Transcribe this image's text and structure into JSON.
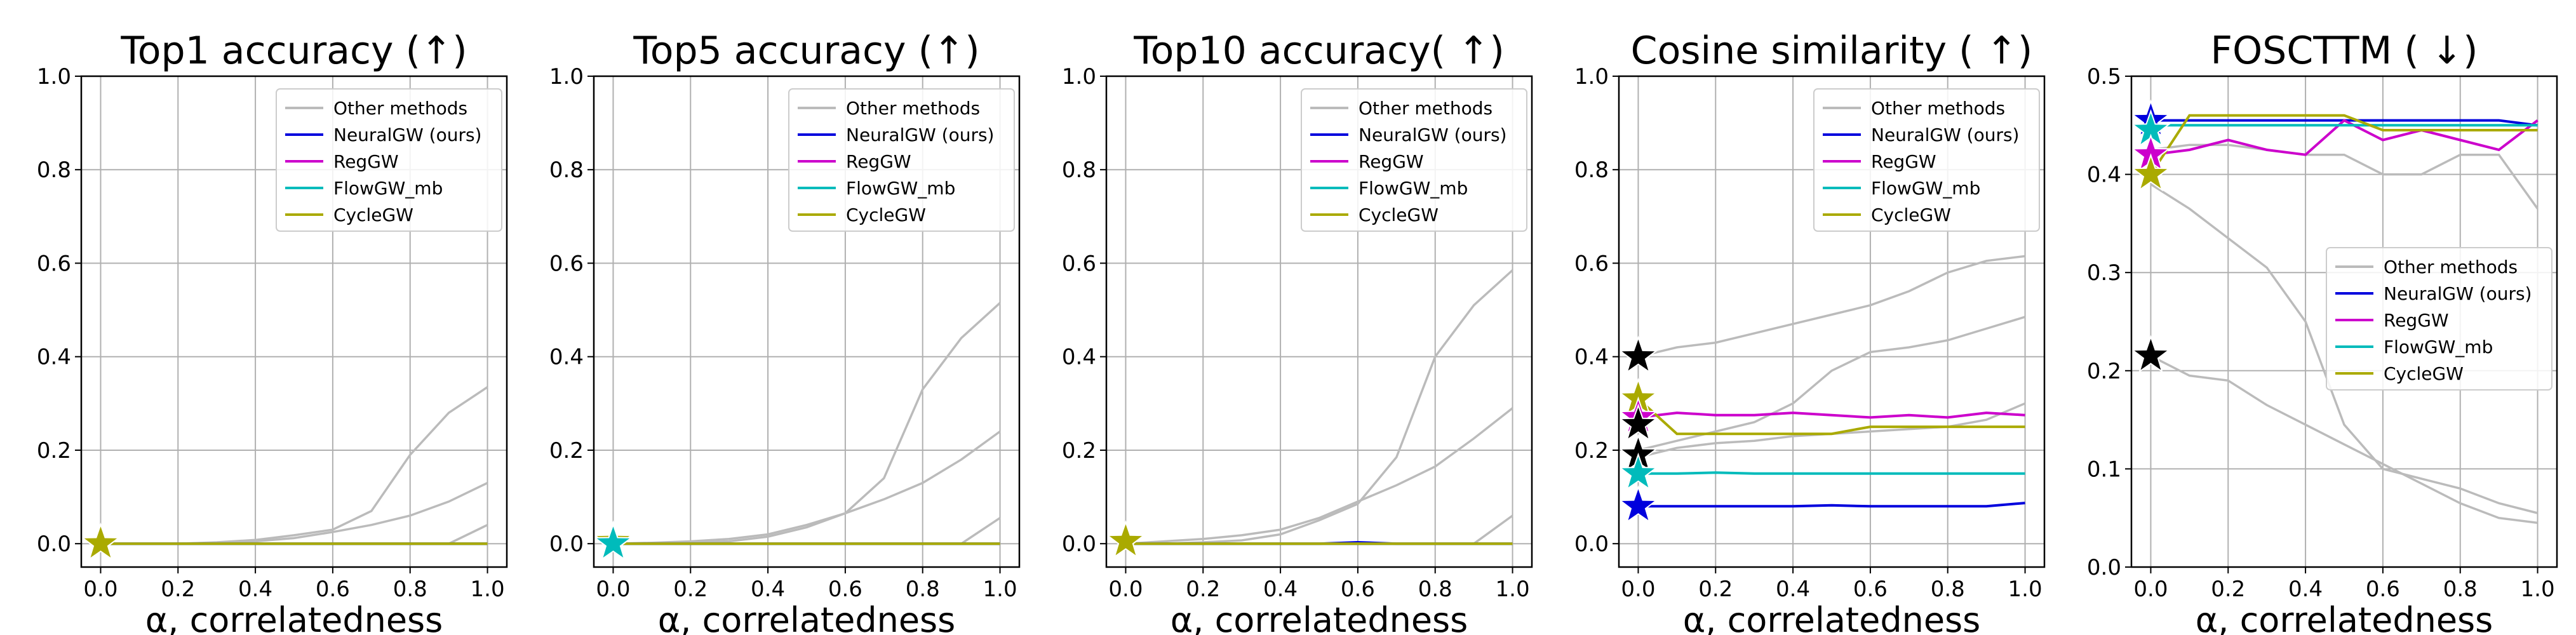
{
  "legend_labels": [
    "Other methods",
    "NeuralGW (ours)",
    "RegGW",
    "FlowGW_mb",
    "CycleGW"
  ],
  "colors": {
    "other": "#bbbbbb",
    "NeuralGW (ours)": "#0000dd",
    "RegGW": "#cc00cc",
    "FlowGW_mb": "#00bbbb",
    "CycleGW": "#aaaa00",
    "star_other": "#000000"
  },
  "chart_data": [
    {
      "type": "line",
      "title": "Top1 accuracy (↑)",
      "xlabel": "α, correlatedness",
      "ylabel": "",
      "xlim": [
        -0.05,
        1.05
      ],
      "ylim": [
        -0.05,
        1.0
      ],
      "xticks": [
        "0.0",
        "0.2",
        "0.4",
        "0.6",
        "0.8",
        "1.0"
      ],
      "yticks": [
        "0.0",
        "0.2",
        "0.4",
        "0.6",
        "0.8",
        "1.0"
      ],
      "grid": true,
      "legend_position": "top-right",
      "x": [
        0.0,
        0.1,
        0.2,
        0.3,
        0.4,
        0.5,
        0.6,
        0.7,
        0.8,
        0.9,
        1.0
      ],
      "other_series": [
        [
          0.0,
          0.0,
          0.0,
          0.002,
          0.005,
          0.012,
          0.025,
          0.04,
          0.06,
          0.09,
          0.13
        ],
        [
          0.0,
          0.0,
          0.0,
          0.003,
          0.008,
          0.018,
          0.03,
          0.07,
          0.19,
          0.28,
          0.335
        ],
        [
          0.0,
          0.0,
          0.0,
          0.0,
          0.0,
          0.0,
          0.0,
          0.0,
          0.0,
          0.0,
          0.04
        ]
      ],
      "series": [
        {
          "name": "NeuralGW (ours)",
          "values": [
            0.0,
            0.0,
            0.0,
            0.0,
            0.0,
            0.0,
            0.0,
            0.0,
            0.0,
            0.0,
            0.0
          ]
        },
        {
          "name": "RegGW",
          "values": [
            0.0,
            0.0,
            0.0,
            0.0,
            0.0,
            0.0,
            0.0,
            0.0,
            0.0,
            0.0,
            0.0
          ]
        },
        {
          "name": "FlowGW_mb",
          "values": [
            0.0,
            0.0,
            0.0,
            0.0,
            0.0,
            0.0,
            0.0,
            0.0,
            0.0,
            0.0,
            0.0
          ]
        },
        {
          "name": "CycleGW",
          "values": [
            0.0,
            0.0,
            0.0,
            0.0,
            0.0,
            0.0,
            0.0,
            0.0,
            0.0,
            0.0,
            0.0
          ]
        }
      ],
      "stars": [
        {
          "series": "other",
          "value": 0.0
        },
        {
          "series": "CycleGW",
          "value": 0.0
        }
      ]
    },
    {
      "type": "line",
      "title": "Top5 accuracy (↑)",
      "xlabel": "α, correlatedness",
      "ylabel": "",
      "xlim": [
        -0.05,
        1.05
      ],
      "ylim": [
        -0.05,
        1.0
      ],
      "xticks": [
        "0.0",
        "0.2",
        "0.4",
        "0.6",
        "0.8",
        "1.0"
      ],
      "yticks": [
        "0.0",
        "0.2",
        "0.4",
        "0.6",
        "0.8",
        "1.0"
      ],
      "grid": true,
      "legend_position": "top-right",
      "x": [
        0.0,
        0.1,
        0.2,
        0.3,
        0.4,
        0.5,
        0.6,
        0.7,
        0.8,
        0.9,
        1.0
      ],
      "other_series": [
        [
          0.0,
          0.002,
          0.005,
          0.01,
          0.02,
          0.04,
          0.065,
          0.095,
          0.13,
          0.18,
          0.24
        ],
        [
          0.0,
          0.0,
          0.002,
          0.005,
          0.015,
          0.035,
          0.065,
          0.14,
          0.33,
          0.44,
          0.515
        ],
        [
          0.0,
          0.0,
          0.0,
          0.0,
          0.0,
          0.0,
          0.0,
          0.0,
          0.0,
          0.0,
          0.055
        ]
      ],
      "series": [
        {
          "name": "NeuralGW (ours)",
          "values": [
            0.0,
            0.0,
            0.0,
            0.0,
            0.0,
            0.0,
            0.0,
            0.0,
            0.0,
            0.0,
            0.0
          ]
        },
        {
          "name": "RegGW",
          "values": [
            0.0,
            0.0,
            0.0,
            0.0,
            0.0,
            0.0,
            0.0,
            0.0,
            0.0,
            0.0,
            0.0
          ]
        },
        {
          "name": "FlowGW_mb",
          "values": [
            0.0,
            0.0,
            0.0,
            0.0,
            0.0,
            0.0,
            0.0,
            0.0,
            0.0,
            0.0,
            0.0
          ]
        },
        {
          "name": "CycleGW",
          "values": [
            0.0,
            0.0,
            0.0,
            0.0,
            0.0,
            0.0,
            0.0,
            0.0,
            0.0,
            0.0,
            0.0
          ]
        }
      ],
      "stars": [
        {
          "series": "other",
          "value": 0.0
        },
        {
          "series": "CycleGW",
          "value": 0.005
        },
        {
          "series": "FlowGW_mb",
          "value": 0.0
        }
      ]
    },
    {
      "type": "line",
      "title": "Top10 accuracy( ↑)",
      "xlabel": "α, correlatedness",
      "ylabel": "",
      "xlim": [
        -0.05,
        1.05
      ],
      "ylim": [
        -0.05,
        1.0
      ],
      "xticks": [
        "0.0",
        "0.2",
        "0.4",
        "0.6",
        "0.8",
        "1.0"
      ],
      "yticks": [
        "0.0",
        "0.2",
        "0.4",
        "0.6",
        "0.8",
        "1.0"
      ],
      "grid": true,
      "legend_position": "top-right",
      "x": [
        0.0,
        0.1,
        0.2,
        0.3,
        0.4,
        0.5,
        0.6,
        0.7,
        0.8,
        0.9,
        1.0
      ],
      "other_series": [
        [
          0.0,
          0.005,
          0.01,
          0.018,
          0.03,
          0.055,
          0.09,
          0.125,
          0.165,
          0.225,
          0.29
        ],
        [
          0.0,
          0.0,
          0.003,
          0.007,
          0.02,
          0.05,
          0.085,
          0.185,
          0.4,
          0.51,
          0.585
        ],
        [
          0.0,
          0.0,
          0.0,
          0.0,
          0.0,
          0.0,
          0.0,
          0.0,
          0.0,
          0.0,
          0.06
        ]
      ],
      "series": [
        {
          "name": "NeuralGW (ours)",
          "values": [
            0.0,
            0.0,
            0.0,
            0.0,
            0.0,
            0.0,
            0.003,
            0.0,
            0.0,
            0.0,
            0.0
          ]
        },
        {
          "name": "RegGW",
          "values": [
            0.0,
            0.0,
            0.0,
            0.0,
            0.0,
            0.0,
            0.0,
            0.0,
            0.0,
            0.0,
            0.0
          ]
        },
        {
          "name": "FlowGW_mb",
          "values": [
            0.0,
            0.0,
            0.0,
            0.0,
            0.0,
            0.0,
            0.0,
            0.0,
            0.0,
            0.0,
            0.0
          ]
        },
        {
          "name": "CycleGW",
          "values": [
            0.0,
            0.0,
            0.0,
            0.0,
            0.0,
            0.0,
            0.0,
            0.0,
            0.0,
            0.0,
            0.0
          ]
        }
      ],
      "stars": [
        {
          "series": "other",
          "value": 0.005
        },
        {
          "series": "CycleGW",
          "value": 0.005
        }
      ]
    },
    {
      "type": "line",
      "title": "Cosine similarity ( ↑)",
      "xlabel": "α, correlatedness",
      "ylabel": "",
      "xlim": [
        -0.05,
        1.05
      ],
      "ylim": [
        -0.05,
        1.0
      ],
      "xticks": [
        "0.0",
        "0.2",
        "0.4",
        "0.6",
        "0.8",
        "1.0"
      ],
      "yticks": [
        "0.0",
        "0.2",
        "0.4",
        "0.6",
        "0.8",
        "1.0"
      ],
      "grid": true,
      "legend_position": "top-right",
      "x": [
        0.0,
        0.1,
        0.2,
        0.3,
        0.4,
        0.5,
        0.6,
        0.7,
        0.8,
        0.9,
        1.0
      ],
      "other_series": [
        [
          0.4,
          0.42,
          0.43,
          0.45,
          0.47,
          0.49,
          0.51,
          0.54,
          0.58,
          0.605,
          0.615
        ],
        [
          0.2,
          0.22,
          0.24,
          0.26,
          0.3,
          0.37,
          0.41,
          0.42,
          0.435,
          0.46,
          0.485
        ],
        [
          0.185,
          0.205,
          0.215,
          0.22,
          0.23,
          0.235,
          0.24,
          0.245,
          0.25,
          0.265,
          0.3
        ]
      ],
      "series": [
        {
          "name": "NeuralGW (ours)",
          "values": [
            0.08,
            0.08,
            0.08,
            0.08,
            0.08,
            0.082,
            0.08,
            0.08,
            0.08,
            0.08,
            0.087
          ]
        },
        {
          "name": "RegGW",
          "values": [
            0.27,
            0.28,
            0.275,
            0.275,
            0.28,
            0.275,
            0.27,
            0.275,
            0.27,
            0.28,
            0.275
          ]
        },
        {
          "name": "FlowGW_mb",
          "values": [
            0.15,
            0.15,
            0.152,
            0.15,
            0.15,
            0.15,
            0.15,
            0.15,
            0.15,
            0.15,
            0.15
          ]
        },
        {
          "name": "CycleGW",
          "values": [
            0.31,
            0.235,
            0.235,
            0.235,
            0.235,
            0.235,
            0.25,
            0.25,
            0.25,
            0.25,
            0.25
          ]
        }
      ],
      "stars": [
        {
          "series": "other",
          "value": 0.4
        },
        {
          "series": "CycleGW",
          "value": 0.31
        },
        {
          "series": "RegGW",
          "value": 0.27
        },
        {
          "series": "other",
          "value": 0.255
        },
        {
          "series": "other",
          "value": 0.19
        },
        {
          "series": "FlowGW_mb",
          "value": 0.15
        },
        {
          "series": "NeuralGW (ours)",
          "value": 0.08
        }
      ]
    },
    {
      "type": "line",
      "title": "FOSCTTM ( ↓)",
      "xlabel": "α, correlatedness",
      "ylabel": "",
      "xlim": [
        -0.05,
        1.05
      ],
      "ylim": [
        0.0,
        0.5
      ],
      "xticks": [
        "0.0",
        "0.2",
        "0.4",
        "0.6",
        "0.8",
        "1.0"
      ],
      "yticks": [
        "0.0",
        "0.1",
        "0.2",
        "0.3",
        "0.4",
        "0.5"
      ],
      "grid": true,
      "legend_position": "center-right",
      "x": [
        0.0,
        0.1,
        0.2,
        0.3,
        0.4,
        0.5,
        0.6,
        0.7,
        0.8,
        0.9,
        1.0
      ],
      "other_series": [
        [
          0.425,
          0.43,
          0.43,
          0.425,
          0.42,
          0.42,
          0.4,
          0.4,
          0.42,
          0.42,
          0.365
        ],
        [
          0.39,
          0.365,
          0.335,
          0.305,
          0.25,
          0.145,
          0.1,
          0.09,
          0.08,
          0.065,
          0.055
        ],
        [
          0.215,
          0.195,
          0.19,
          0.165,
          0.145,
          0.125,
          0.105,
          0.085,
          0.065,
          0.05,
          0.045
        ]
      ],
      "series": [
        {
          "name": "NeuralGW (ours)",
          "values": [
            0.455,
            0.455,
            0.455,
            0.455,
            0.455,
            0.455,
            0.455,
            0.455,
            0.455,
            0.455,
            0.45
          ]
        },
        {
          "name": "RegGW",
          "values": [
            0.42,
            0.425,
            0.435,
            0.425,
            0.42,
            0.455,
            0.435,
            0.445,
            0.435,
            0.425,
            0.455
          ]
        },
        {
          "name": "FlowGW_mb",
          "values": [
            0.45,
            0.45,
            0.45,
            0.45,
            0.45,
            0.45,
            0.45,
            0.45,
            0.45,
            0.45,
            0.45
          ]
        },
        {
          "name": "CycleGW",
          "values": [
            0.4,
            0.46,
            0.46,
            0.46,
            0.46,
            0.46,
            0.445,
            0.445,
            0.445,
            0.445,
            0.445
          ]
        }
      ],
      "stars": [
        {
          "series": "NeuralGW (ours)",
          "value": 0.455
        },
        {
          "series": "FlowGW_mb",
          "value": 0.445
        },
        {
          "series": "RegGW",
          "value": 0.42
        },
        {
          "series": "other",
          "value": 0.4
        },
        {
          "series": "CycleGW",
          "value": 0.4
        },
        {
          "series": "other",
          "value": 0.215
        }
      ]
    }
  ]
}
